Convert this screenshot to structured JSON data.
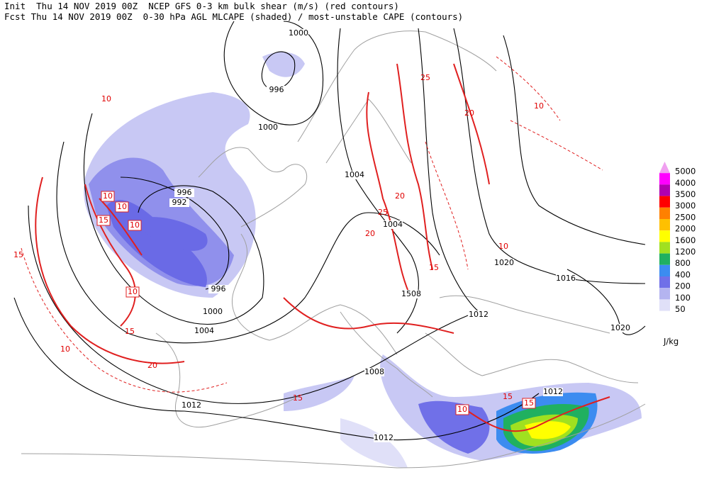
{
  "header": {
    "line1": "Init  Thu 14 NOV 2019 00Z  NCEP GFS 0-3 km bulk shear (m/s) (red contours)",
    "line2": "Fcst Thu 14 NOV 2019 00Z  0-30 hPa AGL MLCAPE (shaded) / most-unstable CAPE (contours)"
  },
  "legend": {
    "unit": "J/kg",
    "levels": [
      {
        "label": "5000",
        "color": "#f0a0f0"
      },
      {
        "label": "4000",
        "color": "#ff00ff"
      },
      {
        "label": "3500",
        "color": "#b000b0"
      },
      {
        "label": "3000",
        "color": "#ff0000"
      },
      {
        "label": "2500",
        "color": "#ff8000"
      },
      {
        "label": "2000",
        "color": "#ffc000"
      },
      {
        "label": "1600",
        "color": "#ffff00"
      },
      {
        "label": "1200",
        "color": "#a0e020"
      },
      {
        "label": "800",
        "color": "#20b060"
      },
      {
        "label": "400",
        "color": "#3c8cf0"
      },
      {
        "label": "200",
        "color": "#7070e8"
      },
      {
        "label": "100",
        "color": "#b4b4f0"
      },
      {
        "label": "50",
        "color": "#e0e0f8"
      }
    ]
  },
  "isobar_labels": [
    "1000",
    "996",
    "1000",
    "1004",
    "996",
    "992",
    "1004",
    "996",
    "1000",
    "1004",
    "1508",
    "1012",
    "1020",
    "1016",
    "1020",
    "1008",
    "1012",
    "1012",
    "1012"
  ],
  "shear_labels": [
    "10",
    "10",
    "15",
    "10",
    "10",
    "10",
    "15",
    "15",
    "20",
    "25",
    "20",
    "15",
    "10",
    "15",
    "20",
    "10",
    "15",
    "10",
    "25",
    "20",
    "15",
    "10"
  ]
}
